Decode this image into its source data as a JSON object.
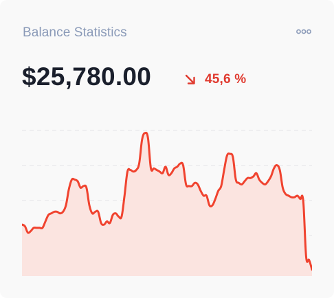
{
  "card": {
    "title": "Balance Statistics",
    "menu_icon": "more-horizontal-icon"
  },
  "balance": {
    "amount": "$25,780.00",
    "change": "45,6 %",
    "change_direction": "down",
    "change_icon": "arrow-down-right-icon"
  },
  "colors": {
    "accent": "#f0432f",
    "change_text": "#e03a2f",
    "fill": "#fbe4e0",
    "grid": "#e3e3e6",
    "title": "#8a9ab8",
    "amount": "#1a1f2c"
  },
  "chart_data": {
    "type": "area",
    "title": "",
    "xlabel": "",
    "ylabel": "",
    "grid": true,
    "gridlines": 4,
    "ylim": [
      0,
      100
    ],
    "x": [
      0,
      1,
      2,
      3,
      4,
      5,
      6,
      7,
      8,
      9,
      10,
      11,
      12,
      13,
      14,
      15,
      16,
      17,
      18,
      19,
      20,
      21,
      22,
      23,
      24,
      25,
      26,
      27,
      28,
      29,
      30,
      31,
      32,
      33,
      34,
      35,
      36,
      37,
      38,
      39,
      40,
      41,
      42,
      43,
      44,
      45,
      46,
      47,
      48,
      49,
      50,
      51,
      52,
      53,
      54,
      55,
      56,
      57,
      58,
      59,
      60,
      61,
      62,
      63,
      64,
      65,
      66,
      67,
      68,
      69,
      70,
      71,
      72,
      73,
      74,
      75,
      76,
      77,
      78,
      79,
      80,
      81,
      82,
      83,
      84,
      85,
      86,
      87,
      88,
      89,
      90,
      91,
      92,
      93,
      94,
      95,
      96,
      97,
      98,
      99
    ],
    "values": [
      32,
      31,
      27,
      28,
      30,
      30,
      30,
      30,
      34,
      38,
      39,
      40,
      40,
      39,
      40,
      44,
      54,
      60,
      60,
      59,
      55,
      56,
      55,
      44,
      39,
      40,
      40,
      33,
      32,
      34,
      33,
      38,
      39,
      37,
      37,
      50,
      65,
      66,
      65,
      66,
      70,
      85,
      89,
      86,
      67,
      67,
      66,
      65,
      64,
      68,
      63,
      64,
      67,
      68,
      70,
      69,
      57,
      56,
      56,
      58,
      57,
      53,
      50,
      50,
      44,
      44,
      48,
      53,
      56,
      66,
      75,
      76,
      74,
      60,
      58,
      57,
      59,
      61,
      61,
      62,
      64,
      60,
      58,
      57,
      59,
      62,
      67,
      69,
      66,
      55,
      51,
      50,
      49,
      49,
      50,
      48,
      47,
      12,
      10,
      4
    ]
  }
}
